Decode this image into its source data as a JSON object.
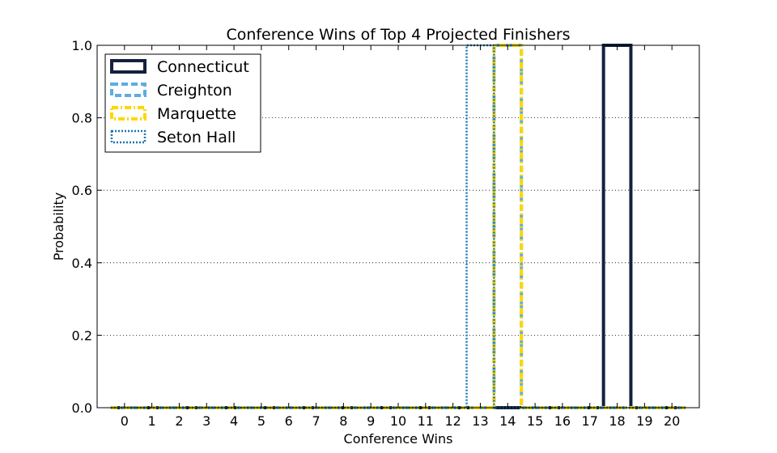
{
  "chart_data": {
    "type": "histogram",
    "title": "Conference Wins of Top 4 Projected Finishers",
    "xlabel": "Conference Wins",
    "ylabel": "Probability",
    "x_ticks": [
      0,
      1,
      2,
      3,
      4,
      5,
      6,
      7,
      8,
      9,
      10,
      11,
      12,
      13,
      14,
      15,
      16,
      17,
      18,
      19,
      20
    ],
    "y_ticks": [
      "0.0",
      "0.2",
      "0.4",
      "0.6",
      "0.8",
      "1.0"
    ],
    "xlim": [
      -1,
      21
    ],
    "ylim": [
      0,
      1
    ],
    "grid": "horizontal dotted",
    "legend_position": "top-left",
    "series": [
      {
        "name": "Connecticut",
        "value": 18,
        "probability": 1.0,
        "color": "#14213d",
        "style": "solid"
      },
      {
        "name": "Creighton",
        "value": 14,
        "probability": 1.0,
        "color": "#5dade2",
        "style": "dashed"
      },
      {
        "name": "Marquette",
        "value": 14,
        "probability": 1.0,
        "color": "#ffd700",
        "style": "dashdot"
      },
      {
        "name": "Seton Hall",
        "value": 13,
        "probability": 1.0,
        "color": "#1a75b0",
        "style": "dotted"
      }
    ]
  }
}
